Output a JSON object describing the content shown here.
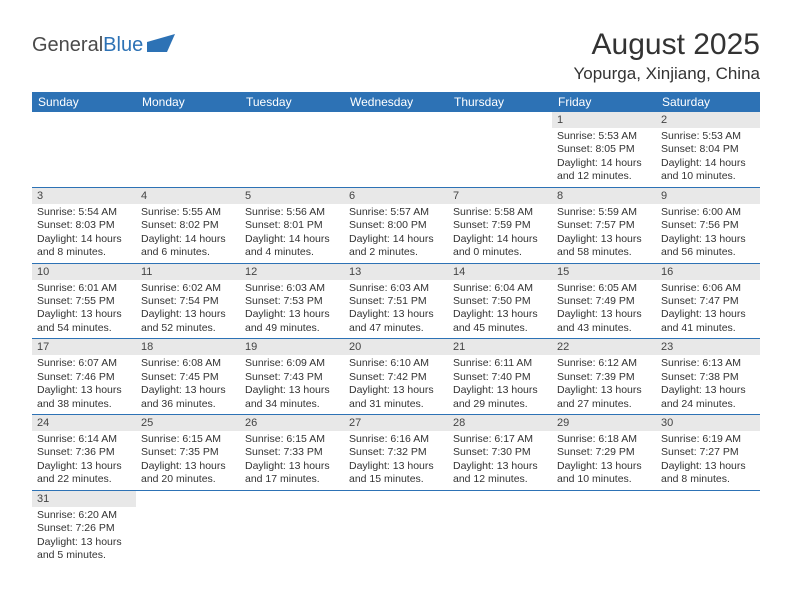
{
  "logo": {
    "text1": "General",
    "text2": "Blue"
  },
  "colors": {
    "accent": "#2d72b5",
    "dayHeaderBg": "#2d72b5",
    "dayHeaderText": "#ffffff",
    "daynumBg": "#e8e8e8",
    "bodyText": "#333333"
  },
  "title": "August 2025",
  "location": "Yopurga, Xinjiang, China",
  "dayNames": [
    "Sunday",
    "Monday",
    "Tuesday",
    "Wednesday",
    "Thursday",
    "Friday",
    "Saturday"
  ],
  "weeks": [
    [
      null,
      null,
      null,
      null,
      null,
      {
        "n": "1",
        "sr": "Sunrise: 5:53 AM",
        "ss": "Sunset: 8:05 PM",
        "dl1": "Daylight: 14 hours",
        "dl2": "and 12 minutes."
      },
      {
        "n": "2",
        "sr": "Sunrise: 5:53 AM",
        "ss": "Sunset: 8:04 PM",
        "dl1": "Daylight: 14 hours",
        "dl2": "and 10 minutes."
      }
    ],
    [
      {
        "n": "3",
        "sr": "Sunrise: 5:54 AM",
        "ss": "Sunset: 8:03 PM",
        "dl1": "Daylight: 14 hours",
        "dl2": "and 8 minutes."
      },
      {
        "n": "4",
        "sr": "Sunrise: 5:55 AM",
        "ss": "Sunset: 8:02 PM",
        "dl1": "Daylight: 14 hours",
        "dl2": "and 6 minutes."
      },
      {
        "n": "5",
        "sr": "Sunrise: 5:56 AM",
        "ss": "Sunset: 8:01 PM",
        "dl1": "Daylight: 14 hours",
        "dl2": "and 4 minutes."
      },
      {
        "n": "6",
        "sr": "Sunrise: 5:57 AM",
        "ss": "Sunset: 8:00 PM",
        "dl1": "Daylight: 14 hours",
        "dl2": "and 2 minutes."
      },
      {
        "n": "7",
        "sr": "Sunrise: 5:58 AM",
        "ss": "Sunset: 7:59 PM",
        "dl1": "Daylight: 14 hours",
        "dl2": "and 0 minutes."
      },
      {
        "n": "8",
        "sr": "Sunrise: 5:59 AM",
        "ss": "Sunset: 7:57 PM",
        "dl1": "Daylight: 13 hours",
        "dl2": "and 58 minutes."
      },
      {
        "n": "9",
        "sr": "Sunrise: 6:00 AM",
        "ss": "Sunset: 7:56 PM",
        "dl1": "Daylight: 13 hours",
        "dl2": "and 56 minutes."
      }
    ],
    [
      {
        "n": "10",
        "sr": "Sunrise: 6:01 AM",
        "ss": "Sunset: 7:55 PM",
        "dl1": "Daylight: 13 hours",
        "dl2": "and 54 minutes."
      },
      {
        "n": "11",
        "sr": "Sunrise: 6:02 AM",
        "ss": "Sunset: 7:54 PM",
        "dl1": "Daylight: 13 hours",
        "dl2": "and 52 minutes."
      },
      {
        "n": "12",
        "sr": "Sunrise: 6:03 AM",
        "ss": "Sunset: 7:53 PM",
        "dl1": "Daylight: 13 hours",
        "dl2": "and 49 minutes."
      },
      {
        "n": "13",
        "sr": "Sunrise: 6:03 AM",
        "ss": "Sunset: 7:51 PM",
        "dl1": "Daylight: 13 hours",
        "dl2": "and 47 minutes."
      },
      {
        "n": "14",
        "sr": "Sunrise: 6:04 AM",
        "ss": "Sunset: 7:50 PM",
        "dl1": "Daylight: 13 hours",
        "dl2": "and 45 minutes."
      },
      {
        "n": "15",
        "sr": "Sunrise: 6:05 AM",
        "ss": "Sunset: 7:49 PM",
        "dl1": "Daylight: 13 hours",
        "dl2": "and 43 minutes."
      },
      {
        "n": "16",
        "sr": "Sunrise: 6:06 AM",
        "ss": "Sunset: 7:47 PM",
        "dl1": "Daylight: 13 hours",
        "dl2": "and 41 minutes."
      }
    ],
    [
      {
        "n": "17",
        "sr": "Sunrise: 6:07 AM",
        "ss": "Sunset: 7:46 PM",
        "dl1": "Daylight: 13 hours",
        "dl2": "and 38 minutes."
      },
      {
        "n": "18",
        "sr": "Sunrise: 6:08 AM",
        "ss": "Sunset: 7:45 PM",
        "dl1": "Daylight: 13 hours",
        "dl2": "and 36 minutes."
      },
      {
        "n": "19",
        "sr": "Sunrise: 6:09 AM",
        "ss": "Sunset: 7:43 PM",
        "dl1": "Daylight: 13 hours",
        "dl2": "and 34 minutes."
      },
      {
        "n": "20",
        "sr": "Sunrise: 6:10 AM",
        "ss": "Sunset: 7:42 PM",
        "dl1": "Daylight: 13 hours",
        "dl2": "and 31 minutes."
      },
      {
        "n": "21",
        "sr": "Sunrise: 6:11 AM",
        "ss": "Sunset: 7:40 PM",
        "dl1": "Daylight: 13 hours",
        "dl2": "and 29 minutes."
      },
      {
        "n": "22",
        "sr": "Sunrise: 6:12 AM",
        "ss": "Sunset: 7:39 PM",
        "dl1": "Daylight: 13 hours",
        "dl2": "and 27 minutes."
      },
      {
        "n": "23",
        "sr": "Sunrise: 6:13 AM",
        "ss": "Sunset: 7:38 PM",
        "dl1": "Daylight: 13 hours",
        "dl2": "and 24 minutes."
      }
    ],
    [
      {
        "n": "24",
        "sr": "Sunrise: 6:14 AM",
        "ss": "Sunset: 7:36 PM",
        "dl1": "Daylight: 13 hours",
        "dl2": "and 22 minutes."
      },
      {
        "n": "25",
        "sr": "Sunrise: 6:15 AM",
        "ss": "Sunset: 7:35 PM",
        "dl1": "Daylight: 13 hours",
        "dl2": "and 20 minutes."
      },
      {
        "n": "26",
        "sr": "Sunrise: 6:15 AM",
        "ss": "Sunset: 7:33 PM",
        "dl1": "Daylight: 13 hours",
        "dl2": "and 17 minutes."
      },
      {
        "n": "27",
        "sr": "Sunrise: 6:16 AM",
        "ss": "Sunset: 7:32 PM",
        "dl1": "Daylight: 13 hours",
        "dl2": "and 15 minutes."
      },
      {
        "n": "28",
        "sr": "Sunrise: 6:17 AM",
        "ss": "Sunset: 7:30 PM",
        "dl1": "Daylight: 13 hours",
        "dl2": "and 12 minutes."
      },
      {
        "n": "29",
        "sr": "Sunrise: 6:18 AM",
        "ss": "Sunset: 7:29 PM",
        "dl1": "Daylight: 13 hours",
        "dl2": "and 10 minutes."
      },
      {
        "n": "30",
        "sr": "Sunrise: 6:19 AM",
        "ss": "Sunset: 7:27 PM",
        "dl1": "Daylight: 13 hours",
        "dl2": "and 8 minutes."
      }
    ],
    [
      {
        "n": "31",
        "sr": "Sunrise: 6:20 AM",
        "ss": "Sunset: 7:26 PM",
        "dl1": "Daylight: 13 hours",
        "dl2": "and 5 minutes."
      },
      null,
      null,
      null,
      null,
      null,
      null
    ]
  ]
}
